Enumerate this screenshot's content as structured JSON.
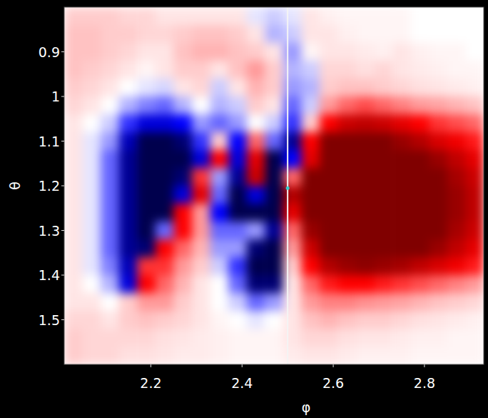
{
  "chart_data": {
    "type": "heatmap",
    "x_label": "φ",
    "y_label": "θ",
    "xlim": [
      2.01,
      2.93
    ],
    "ylim": [
      0.8,
      1.6
    ],
    "xticks": [
      2.2,
      2.4,
      2.6,
      2.8
    ],
    "yticks": [
      0.9,
      1,
      1.1,
      1.2,
      1.3,
      1.4,
      1.5
    ],
    "zlim": [
      -1,
      1
    ],
    "vline_x": 2.5,
    "point": {
      "x": 2.5,
      "y": 1.205
    },
    "x": [
      2.03,
      2.07,
      2.11,
      2.15,
      2.19,
      2.23,
      2.27,
      2.31,
      2.35,
      2.39,
      2.43,
      2.47,
      2.51,
      2.55,
      2.59,
      2.63,
      2.67,
      2.71,
      2.75,
      2.79,
      2.83,
      2.87,
      2.91
    ],
    "y": [
      0.82,
      0.86,
      0.9,
      0.94,
      0.98,
      1.02,
      1.06,
      1.1,
      1.14,
      1.18,
      1.22,
      1.26,
      1.3,
      1.34,
      1.38,
      1.42,
      1.46,
      1.5,
      1.54,
      1.58
    ],
    "z": [
      [
        0.1,
        0.1,
        0.1,
        0.08,
        0.08,
        0.05,
        0.05,
        0.05,
        0.05,
        0.05,
        -0.05,
        -0.1,
        -0.05,
        0.05,
        0.03,
        0.02,
        0.02,
        0.02,
        0.02,
        0.0,
        0.0,
        0.0,
        0.0
      ],
      [
        0.12,
        0.12,
        0.1,
        0.1,
        0.08,
        0.08,
        0.1,
        0.12,
        0.12,
        0.1,
        0.05,
        -0.15,
        -0.1,
        0.05,
        0.05,
        0.03,
        0.02,
        0.02,
        0.02,
        0.0,
        0.0,
        0.0,
        0.0
      ],
      [
        0.12,
        0.12,
        0.1,
        0.08,
        0.05,
        0.05,
        0.12,
        0.15,
        0.15,
        0.12,
        0.1,
        0.05,
        -0.2,
        0.02,
        0.05,
        0.05,
        0.04,
        0.03,
        0.05,
        0.03,
        0.02,
        0.02,
        0.0
      ],
      [
        0.12,
        0.1,
        0.08,
        0.05,
        0.02,
        0.05,
        0.1,
        0.1,
        0.05,
        0.12,
        0.2,
        0.1,
        -0.15,
        -0.1,
        0.08,
        0.08,
        0.06,
        0.08,
        0.05,
        0.04,
        0.03,
        0.02,
        0.02
      ],
      [
        0.1,
        0.08,
        0.05,
        0.0,
        -0.05,
        -0.08,
        0.05,
        0.08,
        -0.1,
        0.05,
        0.15,
        0.1,
        -0.2,
        -0.15,
        0.1,
        0.12,
        0.12,
        0.1,
        0.08,
        0.06,
        0.05,
        0.04,
        0.03
      ],
      [
        0.08,
        0.05,
        0.0,
        -0.15,
        -0.25,
        -0.3,
        -0.15,
        0.0,
        -0.15,
        -0.1,
        0.1,
        0.05,
        -0.3,
        -0.1,
        0.2,
        0.3,
        0.35,
        0.3,
        0.25,
        0.2,
        0.18,
        0.15,
        0.12
      ],
      [
        0.05,
        0.0,
        -0.1,
        -0.4,
        -0.6,
        -0.6,
        -0.5,
        -0.2,
        -0.3,
        -0.2,
        0.0,
        -0.1,
        -0.4,
        0.1,
        0.5,
        0.7,
        0.75,
        0.7,
        0.6,
        0.5,
        0.4,
        0.35,
        0.3
      ],
      [
        0.05,
        -0.05,
        -0.2,
        -0.7,
        -1.0,
        -1.0,
        -0.9,
        -0.4,
        0.1,
        -0.5,
        0.3,
        -0.3,
        -0.8,
        0.5,
        1.0,
        1.0,
        1.0,
        1.0,
        0.9,
        0.8,
        0.65,
        0.55,
        0.45
      ],
      [
        0.05,
        -0.05,
        -0.3,
        -0.8,
        -1.0,
        -1.0,
        -1.0,
        -0.6,
        0.5,
        -0.6,
        0.6,
        -1.0,
        -0.5,
        0.6,
        1.0,
        1.0,
        1.0,
        1.0,
        1.0,
        1.0,
        0.9,
        0.75,
        0.6
      ],
      [
        0.05,
        -0.05,
        -0.3,
        -0.8,
        -1.0,
        -1.0,
        -0.9,
        0.4,
        -0.2,
        -0.8,
        0.7,
        -1.0,
        0.3,
        1.0,
        1.0,
        1.0,
        1.0,
        1.0,
        1.0,
        1.0,
        1.0,
        0.85,
        0.7
      ],
      [
        0.05,
        -0.05,
        -0.3,
        -0.8,
        -1.0,
        -1.0,
        -0.6,
        0.6,
        -0.3,
        -1.0,
        -0.6,
        -1.0,
        0.8,
        1.0,
        1.0,
        1.0,
        1.0,
        1.0,
        1.0,
        1.0,
        1.0,
        0.9,
        0.75
      ],
      [
        0.05,
        -0.05,
        -0.3,
        -0.8,
        -1.0,
        -1.0,
        0.5,
        0.2,
        -0.5,
        -1.0,
        -1.0,
        -1.0,
        0.6,
        1.0,
        1.0,
        1.0,
        1.0,
        1.0,
        1.0,
        1.0,
        1.0,
        0.9,
        0.75
      ],
      [
        0.05,
        -0.05,
        -0.3,
        -0.8,
        -1.0,
        -0.3,
        0.5,
        0.2,
        -0.3,
        -0.3,
        -0.2,
        -0.8,
        0.3,
        0.9,
        1.0,
        1.0,
        1.0,
        1.0,
        1.0,
        1.0,
        1.0,
        0.85,
        0.7
      ],
      [
        0.05,
        -0.05,
        -0.3,
        -0.8,
        -0.9,
        0.5,
        0.3,
        0.15,
        -0.2,
        -0.2,
        -0.9,
        -1.0,
        0.2,
        0.7,
        1.0,
        1.0,
        1.0,
        1.0,
        1.0,
        1.0,
        0.9,
        0.75,
        0.6
      ],
      [
        0.05,
        -0.05,
        -0.25,
        -0.7,
        0.4,
        0.4,
        0.2,
        0.1,
        -0.1,
        -0.4,
        -1.0,
        -1.0,
        0.1,
        0.5,
        0.8,
        0.9,
        0.95,
        0.9,
        0.85,
        0.75,
        0.65,
        0.55,
        0.45
      ],
      [
        0.05,
        0.0,
        -0.15,
        -0.6,
        0.5,
        0.3,
        0.15,
        0.05,
        0.0,
        -0.3,
        -0.9,
        -0.9,
        0.05,
        0.3,
        0.45,
        0.5,
        0.5,
        0.45,
        0.4,
        0.35,
        0.3,
        0.25,
        0.2
      ],
      [
        0.05,
        0.05,
        0.0,
        0.1,
        0.2,
        0.2,
        0.1,
        0.05,
        0.0,
        -0.1,
        -0.3,
        -0.2,
        0.05,
        0.2,
        0.25,
        0.25,
        0.22,
        0.2,
        0.18,
        0.15,
        0.12,
        0.1,
        0.08
      ],
      [
        0.08,
        0.08,
        0.05,
        0.1,
        0.12,
        0.1,
        0.08,
        0.05,
        0.02,
        0.0,
        -0.05,
        0.0,
        0.05,
        0.12,
        0.15,
        0.12,
        0.1,
        0.1,
        0.08,
        0.06,
        0.05,
        0.04,
        0.03
      ],
      [
        0.1,
        0.08,
        0.08,
        0.08,
        0.08,
        0.06,
        0.05,
        0.04,
        0.03,
        0.02,
        0.02,
        0.02,
        0.05,
        0.08,
        0.08,
        0.06,
        0.05,
        0.05,
        0.04,
        0.03,
        0.03,
        0.02,
        0.02
      ],
      [
        0.1,
        0.08,
        0.08,
        0.06,
        0.06,
        0.05,
        0.04,
        0.04,
        0.03,
        0.02,
        0.02,
        0.02,
        0.04,
        0.05,
        0.05,
        0.04,
        0.03,
        0.03,
        0.03,
        0.02,
        0.02,
        0.02,
        0.02
      ]
    ]
  }
}
